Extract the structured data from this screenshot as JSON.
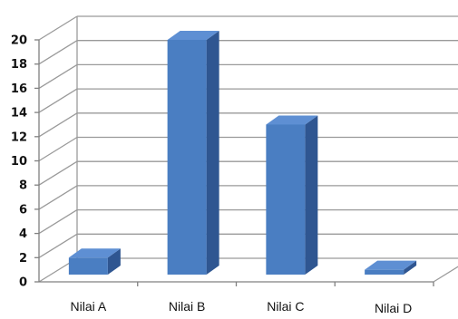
{
  "chart_data": {
    "type": "bar",
    "categories": [
      "Nilai A",
      "Nilai B",
      "Nilai C",
      "Nilai D"
    ],
    "values": [
      2,
      20,
      13,
      1
    ],
    "title": "",
    "xlabel": "",
    "ylabel": "",
    "ylim": [
      0,
      20
    ],
    "ytick_step": 2,
    "yticks": [
      "0",
      "2",
      "4",
      "6",
      "8",
      "10",
      "12",
      "14",
      "16",
      "18",
      "20"
    ],
    "grid": true,
    "style": "3d-column",
    "colors": {
      "bar_front": "#4A7EC2",
      "bar_top": "#5E8FD3",
      "bar_side": "#2F5691",
      "grid": "#9A9A9A",
      "axis": "#808080"
    }
  }
}
